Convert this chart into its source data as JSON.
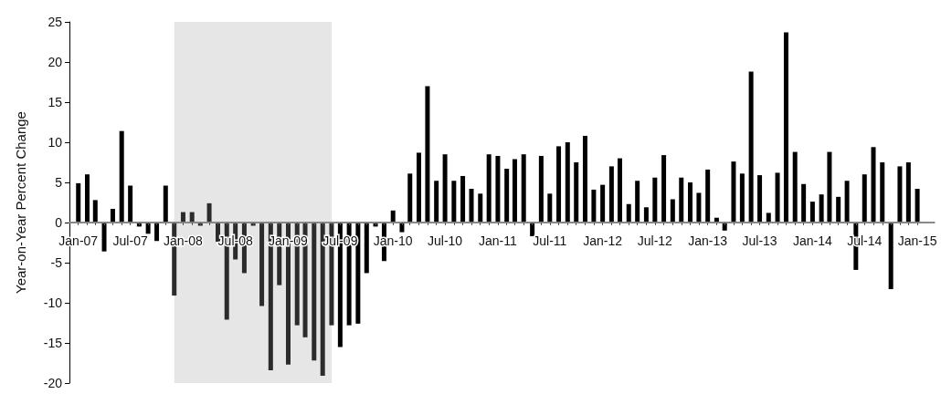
{
  "chart_data": {
    "type": "bar",
    "ylabel": "Year-on-Year Percent Change",
    "x": [
      "2007-01",
      "2007-02",
      "2007-03",
      "2007-04",
      "2007-05",
      "2007-06",
      "2007-07",
      "2007-08",
      "2007-09",
      "2007-10",
      "2007-11",
      "2007-12",
      "2008-01",
      "2008-02",
      "2008-03",
      "2008-04",
      "2008-05",
      "2008-06",
      "2008-07",
      "2008-08",
      "2008-09",
      "2008-10",
      "2008-11",
      "2008-12",
      "2009-01",
      "2009-02",
      "2009-03",
      "2009-04",
      "2009-05",
      "2009-06",
      "2009-07",
      "2009-08",
      "2009-09",
      "2009-10",
      "2009-11",
      "2009-12",
      "2010-01",
      "2010-02",
      "2010-03",
      "2010-04",
      "2010-05",
      "2010-06",
      "2010-07",
      "2010-08",
      "2010-09",
      "2010-10",
      "2010-11",
      "2010-12",
      "2011-01",
      "2011-02",
      "2011-03",
      "2011-04",
      "2011-05",
      "2011-06",
      "2011-07",
      "2011-08",
      "2011-09",
      "2011-10",
      "2011-11",
      "2011-12",
      "2012-01",
      "2012-02",
      "2012-03",
      "2012-04",
      "2012-05",
      "2012-06",
      "2012-07",
      "2012-08",
      "2012-09",
      "2012-10",
      "2012-11",
      "2012-12",
      "2013-01",
      "2013-02",
      "2013-03",
      "2013-04",
      "2013-05",
      "2013-06",
      "2013-07",
      "2013-08",
      "2013-09",
      "2013-10",
      "2013-11",
      "2013-12",
      "2014-01",
      "2014-02",
      "2014-03",
      "2014-04",
      "2014-05",
      "2014-06",
      "2014-07",
      "2014-08",
      "2014-09",
      "2014-10",
      "2014-11",
      "2014-12",
      "2015-01"
    ],
    "values": [
      4.9,
      6.0,
      2.8,
      -3.6,
      1.7,
      11.4,
      4.6,
      -0.5,
      -1.4,
      -2.3,
      4.6,
      -9.1,
      1.3,
      1.3,
      -0.4,
      2.4,
      -2.4,
      -12.1,
      -4.6,
      -6.3,
      -0.4,
      -10.4,
      -18.4,
      -7.8,
      -17.7,
      -12.8,
      -14.3,
      -17.2,
      -19.1,
      -12.8,
      -15.5,
      -12.8,
      -12.6,
      -6.3,
      -0.5,
      -4.8,
      1.5,
      -1.2,
      6.1,
      8.7,
      17.0,
      5.2,
      8.5,
      5.2,
      5.8,
      4.2,
      3.6,
      8.5,
      8.3,
      6.7,
      7.9,
      8.5,
      -1.7,
      8.3,
      3.6,
      9.5,
      10.0,
      7.5,
      10.8,
      4.1,
      4.7,
      7.0,
      8.0,
      2.3,
      5.2,
      1.9,
      5.6,
      8.4,
      2.9,
      5.6,
      5.0,
      3.7,
      6.6,
      0.6,
      -1.0,
      7.6,
      6.1,
      18.8,
      5.9,
      1.2,
      6.2,
      23.7,
      8.8,
      4.8,
      2.6,
      3.5,
      8.8,
      3.2,
      5.2,
      -5.9,
      6.0,
      9.4,
      7.5,
      -8.3,
      7.0,
      7.5,
      4.2
    ],
    "colors": [
      "#000000",
      "#000000",
      "#000000",
      "#000000",
      "#000000",
      "#000000",
      "#000000",
      "#000000",
      "#000000",
      "#000000",
      "#000000",
      "#2b2b2b",
      "#2b2b2b",
      "#2b2b2b",
      "#2b2b2b",
      "#2b2b2b",
      "#2b2b2b",
      "#2b2b2b",
      "#2b2b2b",
      "#2b2b2b",
      "#2b2b2b",
      "#2b2b2b",
      "#2b2b2b",
      "#2b2b2b",
      "#2b2b2b",
      "#2b2b2b",
      "#2b2b2b",
      "#2b2b2b",
      "#2b2b2b",
      "#2b2b2b",
      "#000000",
      "#000000",
      "#000000",
      "#000000",
      "#000000",
      "#000000",
      "#000000",
      "#000000",
      "#000000",
      "#000000",
      "#000000",
      "#000000",
      "#000000",
      "#000000",
      "#000000",
      "#000000",
      "#000000",
      "#000000",
      "#000000",
      "#000000",
      "#000000",
      "#000000",
      "#000000",
      "#000000",
      "#000000",
      "#000000",
      "#000000",
      "#000000",
      "#000000",
      "#000000",
      "#000000",
      "#000000",
      "#000000",
      "#000000",
      "#000000",
      "#000000",
      "#000000",
      "#000000",
      "#000000",
      "#000000",
      "#000000",
      "#000000",
      "#000000",
      "#000000",
      "#000000",
      "#000000",
      "#000000",
      "#000000",
      "#000000",
      "#000000",
      "#000000",
      "#000000",
      "#000000",
      "#000000",
      "#000000",
      "#000000",
      "#000000",
      "#000000",
      "#000000",
      "#000000",
      "#000000",
      "#000000",
      "#000000",
      "#000000",
      "#000000",
      "#000000",
      "#000000"
    ],
    "xlim": [
      "2006-12",
      "2015-03"
    ],
    "xticks": [
      {
        "value": "2007-01",
        "label": "Jan-07"
      },
      {
        "value": "2007-07",
        "label": "Jul-07"
      },
      {
        "value": "2008-01",
        "label": "Jan-08"
      },
      {
        "value": "2008-07",
        "label": "Jul-08"
      },
      {
        "value": "2009-01",
        "label": "Jan-09"
      },
      {
        "value": "2009-07",
        "label": "Jul-09"
      },
      {
        "value": "2010-01",
        "label": "Jan-10"
      },
      {
        "value": "2010-07",
        "label": "Jul-10"
      },
      {
        "value": "2011-01",
        "label": "Jan-11"
      },
      {
        "value": "2011-07",
        "label": "Jul-11"
      },
      {
        "value": "2012-01",
        "label": "Jan-12"
      },
      {
        "value": "2012-07",
        "label": "Jul-12"
      },
      {
        "value": "2013-01",
        "label": "Jan-13"
      },
      {
        "value": "2013-07",
        "label": "Jul-13"
      },
      {
        "value": "2014-01",
        "label": "Jan-14"
      },
      {
        "value": "2014-07",
        "label": "Jul-14"
      },
      {
        "value": "2015-01",
        "label": "Jan-15"
      }
    ],
    "ylim": [
      -20,
      25
    ],
    "yticks": [
      -20,
      -15,
      -10,
      -5,
      0,
      5,
      10,
      15,
      20,
      25
    ],
    "bands": [
      {
        "axis": "x",
        "from": "2007-12",
        "to": "2009-06",
        "color": "#e6e6e6"
      }
    ],
    "grid": false
  }
}
